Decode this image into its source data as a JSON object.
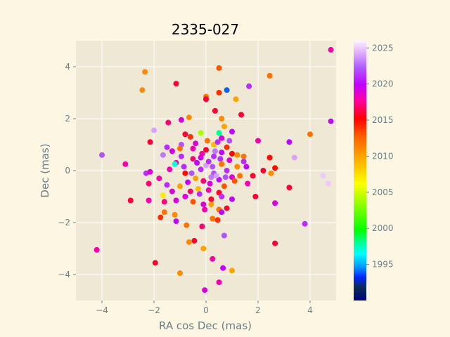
{
  "chart_data": {
    "type": "scatter",
    "title": "2335-027",
    "xlabel": "RA cos Dec (mas)",
    "ylabel": "Dec (mas)",
    "xlim": [
      -5,
      5
    ],
    "ylim": [
      -5,
      5
    ],
    "xticks": [
      -4,
      -2,
      0,
      2,
      4
    ],
    "yticks": [
      -4,
      -2,
      0,
      2,
      4
    ],
    "grid": true,
    "colorbar": {
      "label": "",
      "min": 1990,
      "max": 2026,
      "ticks": [
        1995,
        2000,
        2005,
        2010,
        2015,
        2020,
        2025
      ],
      "colormap": "gist_ncar"
    },
    "points": [
      {
        "x": 4.8,
        "y": 4.65,
        "year": 2018
      },
      {
        "x": 0.5,
        "y": 3.95,
        "year": 2013
      },
      {
        "x": 2.45,
        "y": 3.65,
        "year": 2012
      },
      {
        "x": -2.35,
        "y": 3.8,
        "year": 2011
      },
      {
        "x": -1.15,
        "y": 3.35,
        "year": 2016
      },
      {
        "x": 1.65,
        "y": 3.25,
        "year": 2021
      },
      {
        "x": 0.8,
        "y": 3.1,
        "year": 1994
      },
      {
        "x": 0.5,
        "y": 3.0,
        "year": 2014
      },
      {
        "x": -2.45,
        "y": 3.1,
        "year": 2011
      },
      {
        "x": 0.0,
        "y": 2.85,
        "year": 2012
      },
      {
        "x": 0.0,
        "y": 2.75,
        "year": 2016
      },
      {
        "x": 1.15,
        "y": 2.75,
        "year": 2010
      },
      {
        "x": 0.35,
        "y": 2.3,
        "year": 2016
      },
      {
        "x": 1.35,
        "y": 2.15,
        "year": 2016
      },
      {
        "x": -0.65,
        "y": 2.05,
        "year": 2011
      },
      {
        "x": 0.6,
        "y": 2.0,
        "year": 2011
      },
      {
        "x": -0.95,
        "y": 1.95,
        "year": 2019
      },
      {
        "x": -1.45,
        "y": 1.85,
        "year": 2017
      },
      {
        "x": 4.8,
        "y": 1.9,
        "year": 2020
      },
      {
        "x": 0.7,
        "y": 1.7,
        "year": 2010
      },
      {
        "x": -2.0,
        "y": 1.55,
        "year": 2024
      },
      {
        "x": 1.0,
        "y": 1.5,
        "year": 2020
      },
      {
        "x": -0.2,
        "y": 1.45,
        "year": 2004
      },
      {
        "x": 0.5,
        "y": 1.45,
        "year": 1998
      },
      {
        "x": 4.0,
        "y": 1.4,
        "year": 2012
      },
      {
        "x": -0.8,
        "y": 1.4,
        "year": 2016
      },
      {
        "x": -0.6,
        "y": 1.3,
        "year": 2014
      },
      {
        "x": 0.6,
        "y": 1.25,
        "year": 2019
      },
      {
        "x": 2.0,
        "y": 1.15,
        "year": 2018
      },
      {
        "x": 3.2,
        "y": 1.1,
        "year": 2020
      },
      {
        "x": -2.15,
        "y": 1.1,
        "year": 2016
      },
      {
        "x": -0.95,
        "y": 1.0,
        "year": 2022
      },
      {
        "x": 0.3,
        "y": 1.0,
        "year": 2009
      },
      {
        "x": -1.5,
        "y": 0.9,
        "year": 2021
      },
      {
        "x": 0.8,
        "y": 0.9,
        "year": 2014
      },
      {
        "x": -0.5,
        "y": 0.85,
        "year": 2018
      },
      {
        "x": -1.0,
        "y": 0.85,
        "year": 2012
      },
      {
        "x": 0.0,
        "y": 0.8,
        "year": 2016
      },
      {
        "x": -1.3,
        "y": 0.75,
        "year": 2019
      },
      {
        "x": 0.6,
        "y": 0.7,
        "year": 2020
      },
      {
        "x": 1.0,
        "y": 0.65,
        "year": 2015
      },
      {
        "x": 1.2,
        "y": 0.6,
        "year": 2011
      },
      {
        "x": 1.45,
        "y": 0.55,
        "year": 2012
      },
      {
        "x": -1.65,
        "y": 0.6,
        "year": 2023
      },
      {
        "x": -4.0,
        "y": 0.6,
        "year": 2022
      },
      {
        "x": 2.45,
        "y": 0.5,
        "year": 2015
      },
      {
        "x": 3.4,
        "y": 0.5,
        "year": 2024
      },
      {
        "x": 0.3,
        "y": 0.55,
        "year": 2021
      },
      {
        "x": -0.2,
        "y": 0.5,
        "year": 2020
      },
      {
        "x": 0.9,
        "y": 0.4,
        "year": 2019
      },
      {
        "x": 1.45,
        "y": 0.35,
        "year": 2021
      },
      {
        "x": -1.15,
        "y": 0.3,
        "year": 2018
      },
      {
        "x": -1.2,
        "y": 0.25,
        "year": 1997
      },
      {
        "x": 0.0,
        "y": 0.2,
        "year": 2024
      },
      {
        "x": 0.6,
        "y": 0.25,
        "year": 2012
      },
      {
        "x": -3.1,
        "y": 0.25,
        "year": 2018
      },
      {
        "x": 1.2,
        "y": 0.15,
        "year": 2011
      },
      {
        "x": 1.55,
        "y": 0.15,
        "year": 2020
      },
      {
        "x": 2.65,
        "y": 0.1,
        "year": 2015
      },
      {
        "x": 2.2,
        "y": 0.0,
        "year": 2016
      },
      {
        "x": -1.4,
        "y": 0.05,
        "year": 2018
      },
      {
        "x": -2.3,
        "y": -0.1,
        "year": 2021
      },
      {
        "x": -2.15,
        "y": -0.05,
        "year": 2019
      },
      {
        "x": 0.8,
        "y": 0.0,
        "year": 2021
      },
      {
        "x": 2.5,
        "y": -0.1,
        "year": 2011
      },
      {
        "x": 0.3,
        "y": -0.1,
        "year": 2022
      },
      {
        "x": -0.8,
        "y": -0.1,
        "year": 2015
      },
      {
        "x": 1.8,
        "y": -0.2,
        "year": 2016
      },
      {
        "x": 4.5,
        "y": -0.2,
        "year": 2025
      },
      {
        "x": 1.0,
        "y": -0.25,
        "year": 2019
      },
      {
        "x": -0.4,
        "y": -0.3,
        "year": 2010
      },
      {
        "x": -1.8,
        "y": -0.3,
        "year": 2018
      },
      {
        "x": 0.5,
        "y": -0.35,
        "year": 2020
      },
      {
        "x": 1.1,
        "y": -0.4,
        "year": 2013
      },
      {
        "x": -0.1,
        "y": -0.4,
        "year": 2017
      },
      {
        "x": 1.6,
        "y": -0.5,
        "year": 2018
      },
      {
        "x": 4.7,
        "y": -0.5,
        "year": 2025
      },
      {
        "x": -2.2,
        "y": -0.5,
        "year": 2017
      },
      {
        "x": -1.5,
        "y": -0.55,
        "year": 2021
      },
      {
        "x": 0.7,
        "y": -0.6,
        "year": 2013
      },
      {
        "x": 3.2,
        "y": -0.65,
        "year": 2016
      },
      {
        "x": -0.3,
        "y": -0.7,
        "year": 2009
      },
      {
        "x": 0.1,
        "y": -0.75,
        "year": 2018
      },
      {
        "x": -1.3,
        "y": -0.8,
        "year": 2019
      },
      {
        "x": -0.6,
        "y": -0.8,
        "year": 2017
      },
      {
        "x": 0.5,
        "y": -0.85,
        "year": 2016
      },
      {
        "x": -1.65,
        "y": -0.95,
        "year": 2007
      },
      {
        "x": -0.8,
        "y": -1.0,
        "year": 2019
      },
      {
        "x": 1.9,
        "y": -1.0,
        "year": 2016
      },
      {
        "x": 0.2,
        "y": -1.1,
        "year": 2016
      },
      {
        "x": -2.9,
        "y": -1.15,
        "year": 2016
      },
      {
        "x": -2.2,
        "y": -1.15,
        "year": 2018
      },
      {
        "x": -1.15,
        "y": -1.15,
        "year": 2019
      },
      {
        "x": 1.0,
        "y": -1.1,
        "year": 2020
      },
      {
        "x": -1.6,
        "y": -1.2,
        "year": 2017
      },
      {
        "x": -0.5,
        "y": -1.2,
        "year": 2013
      },
      {
        "x": 0.2,
        "y": -1.3,
        "year": 2010
      },
      {
        "x": 2.65,
        "y": -1.25,
        "year": 2019
      },
      {
        "x": -0.1,
        "y": -1.3,
        "year": 2019
      },
      {
        "x": -0.05,
        "y": -1.5,
        "year": 2018
      },
      {
        "x": 0.8,
        "y": -1.45,
        "year": 2016
      },
      {
        "x": 0.5,
        "y": -1.5,
        "year": 2012
      },
      {
        "x": -1.6,
        "y": -1.6,
        "year": 2012
      },
      {
        "x": 0.6,
        "y": -1.6,
        "year": 2020
      },
      {
        "x": -1.2,
        "y": -1.7,
        "year": 2011
      },
      {
        "x": -1.75,
        "y": -1.8,
        "year": 2014
      },
      {
        "x": 0.25,
        "y": -1.85,
        "year": 2012
      },
      {
        "x": 0.45,
        "y": -1.9,
        "year": 2014
      },
      {
        "x": -1.15,
        "y": -1.95,
        "year": 2020
      },
      {
        "x": 3.8,
        "y": -2.05,
        "year": 2021
      },
      {
        "x": -0.15,
        "y": -2.15,
        "year": 2017
      },
      {
        "x": -0.75,
        "y": -2.1,
        "year": 2012
      },
      {
        "x": 0.7,
        "y": -2.5,
        "year": 2022
      },
      {
        "x": -0.45,
        "y": -2.7,
        "year": 2016
      },
      {
        "x": -0.65,
        "y": -2.75,
        "year": 2011
      },
      {
        "x": 2.65,
        "y": -2.8,
        "year": 2016
      },
      {
        "x": -0.1,
        "y": -3.0,
        "year": 2010
      },
      {
        "x": -4.2,
        "y": -3.05,
        "year": 2018
      },
      {
        "x": 0.25,
        "y": -3.4,
        "year": 2018
      },
      {
        "x": -1.95,
        "y": -3.55,
        "year": 2016
      },
      {
        "x": 0.65,
        "y": -3.75,
        "year": 2020
      },
      {
        "x": 1.0,
        "y": -3.85,
        "year": 2010
      },
      {
        "x": -1.0,
        "y": -3.95,
        "year": 2011
      },
      {
        "x": 0.5,
        "y": -4.3,
        "year": 2018
      },
      {
        "x": -0.05,
        "y": -4.6,
        "year": 2019
      },
      {
        "x": 0.1,
        "y": 0.35,
        "year": 2021
      },
      {
        "x": 0.25,
        "y": 0.15,
        "year": 2022
      },
      {
        "x": -0.35,
        "y": 0.3,
        "year": 2020
      },
      {
        "x": 0.4,
        "y": -0.2,
        "year": 2024
      },
      {
        "x": -0.2,
        "y": 0.05,
        "year": 2021
      },
      {
        "x": 0.15,
        "y": -0.5,
        "year": 2019
      },
      {
        "x": -0.5,
        "y": 0.45,
        "year": 2017
      },
      {
        "x": 0.55,
        "y": 0.45,
        "year": 2021
      },
      {
        "x": -0.7,
        "y": -0.45,
        "year": 2020
      },
      {
        "x": 0.35,
        "y": 0.75,
        "year": 2023
      },
      {
        "x": -0.25,
        "y": -0.9,
        "year": 2021
      },
      {
        "x": 0.75,
        "y": -0.25,
        "year": 2022
      },
      {
        "x": -0.85,
        "y": 0.15,
        "year": 2021
      },
      {
        "x": 0.05,
        "y": 1.15,
        "year": 2012
      },
      {
        "x": -0.4,
        "y": 1.05,
        "year": 2019
      },
      {
        "x": 0.45,
        "y": 1.1,
        "year": 2021
      },
      {
        "x": -0.15,
        "y": 0.65,
        "year": 2018
      },
      {
        "x": 0.2,
        "y": -0.25,
        "year": 2023
      },
      {
        "x": -0.55,
        "y": -0.1,
        "year": 2022
      },
      {
        "x": 0.6,
        "y": -1.0,
        "year": 2021
      },
      {
        "x": -1.0,
        "y": -0.6,
        "year": 2010
      },
      {
        "x": 1.3,
        "y": -0.2,
        "year": 2012
      },
      {
        "x": -0.95,
        "y": 0.55,
        "year": 2021
      },
      {
        "x": 0.9,
        "y": 1.15,
        "year": 2022
      }
    ]
  }
}
